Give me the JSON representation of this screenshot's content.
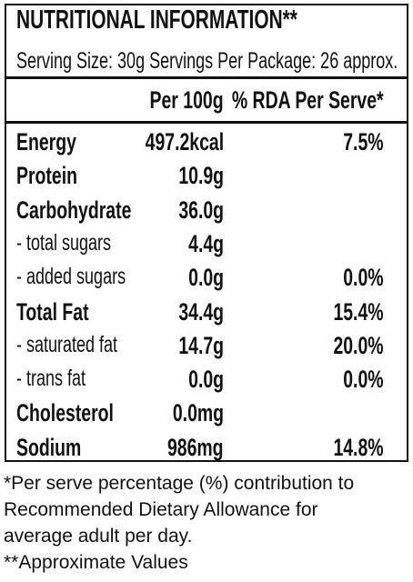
{
  "header": {
    "title": "NUTRITIONAL INFORMATION**",
    "serving": "Serving Size: 30g  Servings Per Package: 26 approx."
  },
  "table": {
    "columns": [
      "Per 100g",
      "% RDA Per Serve*"
    ],
    "rows": [
      {
        "label": "Energy",
        "per_100g": "497.2kcal",
        "rda": "7.5%",
        "bold": true
      },
      {
        "label": "Protein",
        "per_100g": "10.9g",
        "bold": true
      },
      {
        "label": "Carbohydrate",
        "per_100g": "36.0g",
        "bold": true
      },
      {
        "label": "- total sugars",
        "per_100g": "4.4g",
        "bold": false
      },
      {
        "label": "- added sugars",
        "per_100g": "0.0g",
        "rda": "0.0%",
        "bold": false
      },
      {
        "label": "Total Fat",
        "per_100g": "34.4g",
        "rda": "15.4%",
        "bold": true
      },
      {
        "label": "- saturated fat",
        "per_100g": "14.7g",
        "rda": "20.0%",
        "bold": false
      },
      {
        "label": "- trans fat",
        "per_100g": "0.0g",
        "rda": "0.0%",
        "bold": false
      },
      {
        "label": "Cholesterol",
        "per_100g": "0.0mg",
        "bold": true
      },
      {
        "label": "Sodium",
        "per_100g": "986mg",
        "rda": "14.8%",
        "bold": true
      }
    ]
  },
  "footnotes": [
    "*Per serve percentage (%) contribution to",
    "Recommended Dietary Allowance for",
    "average adult per day.",
    "**Approximate Values"
  ]
}
